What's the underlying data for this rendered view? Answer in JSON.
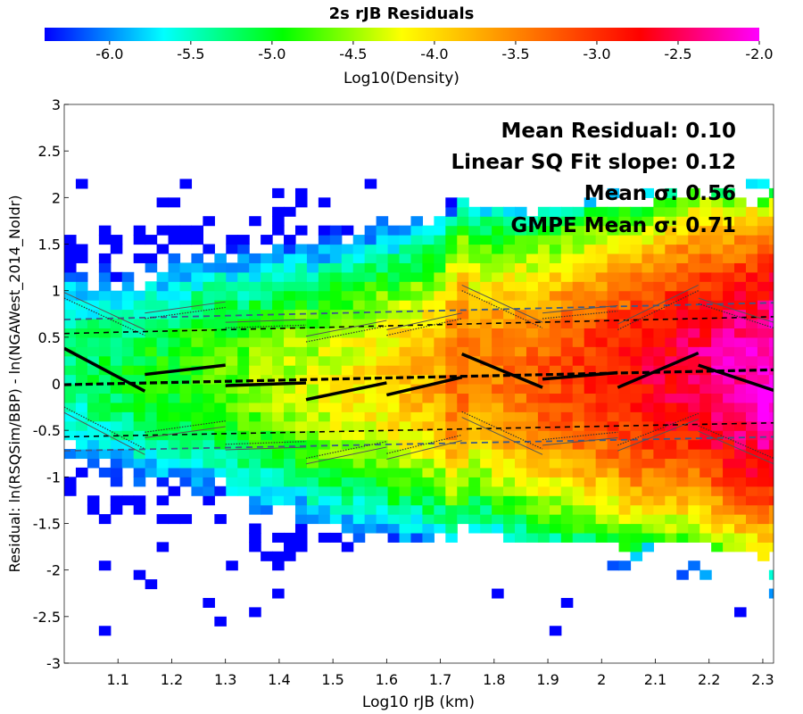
{
  "chart_data": {
    "type": "heatmap",
    "title": "2s rJB Residuals",
    "xlabel": "Log10 rJB (km)",
    "ylabel": "Residual: ln(RSQSim/BBP) - ln(NGAWest_2014_NoIdr)",
    "xlim": [
      1.0,
      2.32
    ],
    "ylim": [
      -3,
      3
    ],
    "xticks": [
      "1.1",
      "1.2",
      "1.3",
      "1.4",
      "1.5",
      "1.6",
      "1.7",
      "1.8",
      "1.9",
      "2",
      "2.1",
      "2.2",
      "2.3"
    ],
    "yticks": [
      "3",
      "2.5",
      "2",
      "1.5",
      "1",
      "0.5",
      "0",
      "-0.5",
      "-1",
      "-1.5",
      "-2",
      "-2.5",
      "-3"
    ],
    "colorbar": {
      "label": "Log10(Density)",
      "range": [
        -6.4,
        -2.0
      ],
      "ticks": [
        "-6.0",
        "-5.5",
        "-5.0",
        "-4.5",
        "-4.0",
        "-3.5",
        "-3.0",
        "-2.5",
        "-2.0"
      ],
      "colors": [
        "#0000ff",
        "#00ffff",
        "#00ff00",
        "#ffff00",
        "#ff8000",
        "#ff0000",
        "#ff00ff"
      ]
    },
    "annotations": [
      "Mean Residual: 0.10",
      "Linear SQ Fit slope: 0.12",
      "Mean σ: 0.56",
      "GMPE Mean σ: 0.71"
    ],
    "overall_fit": {
      "mean": [
        [
          1.0,
          -0.01
        ],
        [
          2.32,
          0.15
        ]
      ],
      "upper": [
        [
          1.0,
          0.54
        ],
        [
          2.32,
          0.72
        ]
      ],
      "lower": [
        [
          1.0,
          -0.57
        ],
        [
          2.32,
          -0.42
        ]
      ],
      "gmpe_upper": [
        [
          1.0,
          0.69
        ],
        [
          2.32,
          0.87
        ]
      ],
      "gmpe_lower": [
        [
          1.0,
          -0.72
        ],
        [
          2.32,
          -0.57
        ]
      ]
    },
    "bin_fits": [
      {
        "x": [
          1.0,
          1.15
        ],
        "mean": [
          0.38,
          -0.08
        ],
        "upper": [
          0.92,
          0.52
        ],
        "lower": [
          -0.25,
          -0.7
        ]
      },
      {
        "x": [
          1.15,
          1.3
        ],
        "mean": [
          0.1,
          0.2
        ],
        "upper": [
          0.7,
          0.82
        ],
        "lower": [
          -0.52,
          -0.4
        ]
      },
      {
        "x": [
          1.3,
          1.45
        ],
        "mean": [
          -0.02,
          0.01
        ],
        "upper": [
          0.6,
          0.63
        ],
        "lower": [
          -0.65,
          -0.62
        ]
      },
      {
        "x": [
          1.45,
          1.6
        ],
        "mean": [
          -0.17,
          0.01
        ],
        "upper": [
          0.45,
          0.62
        ],
        "lower": [
          -0.8,
          -0.62
        ]
      },
      {
        "x": [
          1.6,
          1.74
        ],
        "mean": [
          -0.12,
          0.07
        ],
        "upper": [
          0.52,
          0.7
        ],
        "lower": [
          -0.75,
          -0.55
        ]
      },
      {
        "x": [
          1.74,
          1.89
        ],
        "mean": [
          0.32,
          -0.04
        ],
        "upper": [
          1.0,
          0.6
        ],
        "lower": [
          -0.3,
          -0.7
        ]
      },
      {
        "x": [
          1.89,
          2.03
        ],
        "mean": [
          0.05,
          0.12
        ],
        "upper": [
          0.7,
          0.78
        ],
        "lower": [
          -0.6,
          -0.52
        ]
      },
      {
        "x": [
          2.03,
          2.18
        ],
        "mean": [
          -0.04,
          0.33
        ],
        "upper": [
          0.58,
          1.0
        ],
        "lower": [
          -0.66,
          -0.32
        ]
      },
      {
        "x": [
          2.18,
          2.32
        ],
        "mean": [
          0.2,
          -0.07
        ],
        "upper": [
          0.86,
          0.6
        ],
        "lower": [
          -0.45,
          -0.8
        ]
      }
    ]
  }
}
